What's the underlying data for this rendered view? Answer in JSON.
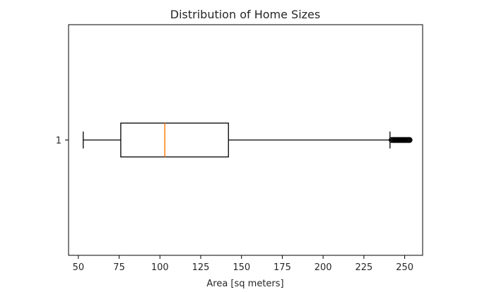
{
  "chart_data": {
    "type": "boxplot",
    "orientation": "horizontal",
    "title": "Distribution of Home Sizes",
    "xlabel": "Area [sq meters]",
    "ylabel": "",
    "xlim": [
      44,
      261
    ],
    "x_ticks": [
      50,
      75,
      100,
      125,
      150,
      175,
      200,
      225,
      250
    ],
    "y_ticks": [
      "1"
    ],
    "grid": false,
    "boxes": [
      {
        "category": "1",
        "whisker_low": 53,
        "q1": 76,
        "median": 103,
        "q3": 142,
        "whisker_high": 241,
        "outliers": [
          242,
          243,
          243.5,
          244,
          244.5,
          245,
          245.5,
          246,
          246.5,
          247,
          247.5,
          248,
          248.5,
          249,
          249.5,
          250,
          250.5,
          251,
          251.5,
          252,
          252.5,
          253
        ]
      }
    ],
    "colors": {
      "box": "#000000",
      "median": "#ff7f0e",
      "axes": "#000000",
      "text": "#262626"
    }
  }
}
